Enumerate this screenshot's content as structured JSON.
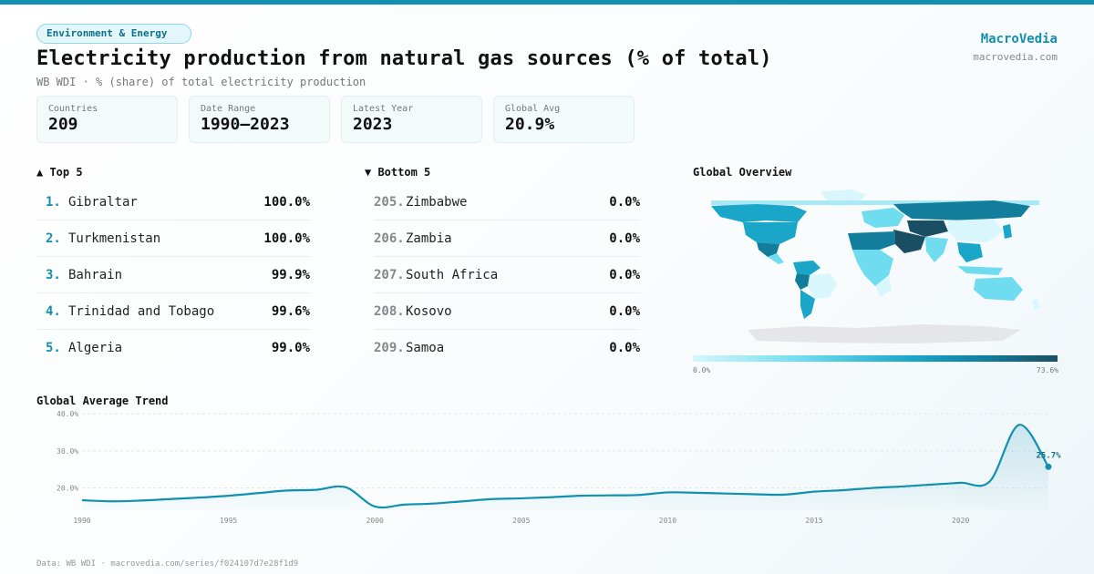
{
  "category": "Environment & Energy",
  "title": "Electricity production from natural gas sources (% of total)",
  "subtitle": "WB WDI · % (share) of total electricity production",
  "brand": {
    "name": "MacroVedia",
    "url": "macrovedia.com"
  },
  "stats": [
    {
      "label": "Countries",
      "value": "209"
    },
    {
      "label": "Date Range",
      "value": "1990–2023"
    },
    {
      "label": "Latest Year",
      "value": "2023"
    },
    {
      "label": "Global Avg",
      "value": "20.9%"
    }
  ],
  "top5": {
    "heading": "▲ Top 5",
    "items": [
      {
        "rank": "1.",
        "name": "Gibraltar",
        "value": "100.0%"
      },
      {
        "rank": "2.",
        "name": "Turkmenistan",
        "value": "100.0%"
      },
      {
        "rank": "3.",
        "name": "Bahrain",
        "value": "99.9%"
      },
      {
        "rank": "4.",
        "name": "Trinidad and Tobago",
        "value": "99.6%"
      },
      {
        "rank": "5.",
        "name": "Algeria",
        "value": "99.0%"
      }
    ]
  },
  "bottom5": {
    "heading": "▼ Bottom 5",
    "items": [
      {
        "rank": "205.",
        "name": "Zimbabwe",
        "value": "0.0%"
      },
      {
        "rank": "206.",
        "name": "Zambia",
        "value": "0.0%"
      },
      {
        "rank": "207.",
        "name": "South Africa",
        "value": "0.0%"
      },
      {
        "rank": "208.",
        "name": "Kosovo",
        "value": "0.0%"
      },
      {
        "rank": "209.",
        "name": "Samoa",
        "value": "0.0%"
      }
    ]
  },
  "map": {
    "heading": "Global Overview",
    "scale_min": "0.0%",
    "scale_max": "73.6%",
    "scale_colors": [
      "#d8f6fc",
      "#6fdcef",
      "#1aa6c8",
      "#137e9c",
      "#1a4f63"
    ],
    "no_data_color": "#e5e6ea"
  },
  "trend_heading": "Global Average Trend",
  "footer": "Data: WB WDI · macrovedia.com/series/f024107d7e28f1d9",
  "colors": {
    "accent": "#1190b0",
    "line": "#1190b0"
  },
  "chart_data": {
    "type": "area",
    "x": [
      1990,
      1991,
      1992,
      1993,
      1994,
      1995,
      1996,
      1997,
      1998,
      1999,
      2000,
      2001,
      2002,
      2003,
      2004,
      2005,
      2006,
      2007,
      2008,
      2009,
      2010,
      2011,
      2012,
      2013,
      2014,
      2015,
      2016,
      2017,
      2018,
      2019,
      2020,
      2021,
      2022,
      2023
    ],
    "values": [
      16.7,
      16.4,
      16.6,
      17.0,
      17.4,
      17.9,
      18.6,
      19.3,
      19.5,
      20.2,
      15.0,
      15.5,
      15.8,
      16.4,
      17.0,
      17.2,
      17.5,
      17.9,
      18.0,
      18.1,
      18.8,
      18.7,
      18.5,
      18.3,
      18.2,
      19.0,
      19.4,
      20.0,
      20.4,
      20.9,
      21.4,
      21.8,
      37.0,
      25.7
    ],
    "last_label": "25.7%",
    "y_ticks": [
      "20.0%",
      "30.0%",
      "40.0%"
    ],
    "x_ticks": [
      "1990",
      "1995",
      "2000",
      "2005",
      "2010",
      "2015",
      "2020"
    ],
    "ylim": [
      14,
      41
    ],
    "grid": true
  }
}
